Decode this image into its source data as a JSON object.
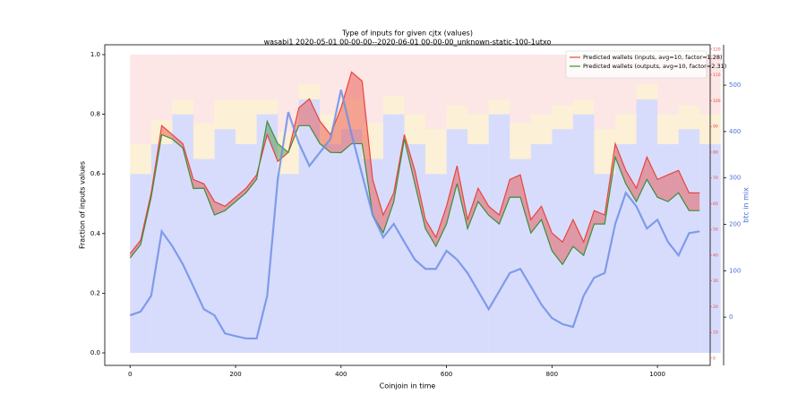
{
  "chart_data": {
    "type": "line",
    "title": "Type of inputs for given cjtx (values)",
    "subtitle": "wasabi1 2020-05-01 00-00-00--2020-06-01 00-00-00_unknown-static-100-1utxo",
    "xlabel": "Coinjoin in time",
    "ylabel": "Fraction of inputs values",
    "y2label": "btc in mix",
    "legend": "upper right",
    "x": [
      0,
      20,
      40,
      60,
      80,
      100,
      120,
      140,
      160,
      180,
      200,
      220,
      240,
      260,
      280,
      300,
      320,
      340,
      360,
      380,
      400,
      420,
      440,
      460,
      480,
      500,
      520,
      540,
      560,
      580,
      600,
      620,
      640,
      660,
      680,
      700,
      720,
      740,
      760,
      780,
      800,
      820,
      840,
      860,
      880,
      900,
      920,
      940,
      960,
      980,
      1000,
      1020,
      1040,
      1060,
      1080
    ],
    "series": [
      {
        "name": "Predicted wallets (inputs, avg=10, factor=1.28)",
        "color": "#e8453c",
        "axis": "y3",
        "values": [
          40.6,
          45.8,
          64.2,
          90.3,
          86.8,
          83.3,
          69.4,
          67.7,
          60.8,
          59.0,
          62.5,
          66.0,
          71.2,
          86.8,
          76.4,
          79.9,
          97.2,
          100.7,
          92.0,
          86.8,
          97.2,
          111.1,
          107.6,
          69.4,
          55.6,
          64.2,
          86.8,
          72.9,
          53.8,
          46.9,
          59.0,
          74.7,
          53.8,
          66.0,
          59.0,
          55.6,
          69.4,
          71.2,
          53.8,
          59.0,
          48.6,
          45.1,
          53.8,
          45.1,
          57.3,
          55.6,
          83.3,
          72.9,
          66.0,
          78.1,
          69.4,
          71.2,
          72.9,
          64.2,
          64.2
        ]
      },
      {
        "name": "Predicted wallets (outputs, avg=10, factor=2.31)",
        "color": "#3a8f3a",
        "axis": "y3",
        "values": [
          38.9,
          44.1,
          62.5,
          86.8,
          85.1,
          81.6,
          65.9,
          66.0,
          55.6,
          57.3,
          60.8,
          64.3,
          69.5,
          92.0,
          83.3,
          79.9,
          90.3,
          90.3,
          83.3,
          79.9,
          79.8,
          83.3,
          83.3,
          55.5,
          48.7,
          60.7,
          85.1,
          67.7,
          50.3,
          43.4,
          52.1,
          67.8,
          50.3,
          60.8,
          55.5,
          52.1,
          62.5,
          62.5,
          48.6,
          53.8,
          41.7,
          36.4,
          43.4,
          39.9,
          52.1,
          52.1,
          78.1,
          67.7,
          60.8,
          69.4,
          62.5,
          60.8,
          64.2,
          57.3,
          57.3
        ]
      },
      {
        "color": "#6f8fe6",
        "axis": "y2",
        "values": [
          4,
          12,
          46,
          185,
          153,
          114,
          66,
          17,
          4,
          -35,
          -41,
          -46,
          -46,
          46,
          297,
          442,
          375,
          326,
          355,
          384,
          490,
          394,
          307,
          220,
          172,
          201,
          162,
          124,
          104,
          104,
          143,
          124,
          95,
          56,
          17,
          56,
          95,
          104,
          66,
          27,
          -2,
          -15,
          -21,
          46,
          85,
          95,
          201,
          268,
          239,
          191,
          210,
          162,
          133,
          181,
          185
        ]
      }
    ],
    "bars": {
      "x": [
        0,
        40,
        80,
        120,
        160,
        200,
        240,
        280,
        320,
        360,
        400,
        440,
        480,
        520,
        560,
        600,
        640,
        680,
        720,
        760,
        800,
        840,
        880,
        920,
        960,
        1000,
        1040,
        1080
      ],
      "series": [
        {
          "color": "#8e9cf5",
          "values": [
            0.6,
            0.7,
            0.8,
            0.65,
            0.75,
            0.7,
            0.8,
            0.6,
            0.85,
            0.7,
            0.75,
            0.65,
            0.8,
            0.7,
            0.6,
            0.75,
            0.7,
            0.8,
            0.65,
            0.7,
            0.75,
            0.8,
            0.6,
            0.7,
            0.85,
            0.7,
            0.75,
            0.7
          ]
        },
        {
          "color": "#f7d58a",
          "values": [
            0.1,
            0.08,
            0.05,
            0.12,
            0.1,
            0.15,
            0.05,
            0.14,
            0.05,
            0.1,
            0.1,
            0.12,
            0.06,
            0.1,
            0.15,
            0.08,
            0.1,
            0.05,
            0.12,
            0.1,
            0.08,
            0.05,
            0.15,
            0.1,
            0.05,
            0.1,
            0.08,
            0.1
          ]
        },
        {
          "color": "#f7b8b8",
          "values": [
            0.3,
            0.22,
            0.15,
            0.23,
            0.15,
            0.15,
            0.15,
            0.26,
            0.1,
            0.2,
            0.15,
            0.23,
            0.14,
            0.2,
            0.25,
            0.17,
            0.2,
            0.15,
            0.23,
            0.2,
            0.17,
            0.15,
            0.25,
            0.2,
            0.1,
            0.2,
            0.17,
            0.2
          ]
        }
      ]
    },
    "xlim": [
      -48,
      1100
    ],
    "xticks": [
      0,
      200,
      400,
      600,
      800,
      1000
    ],
    "ylim": [
      -0.042,
      1.033
    ],
    "yticks": [
      {
        "value": 0,
        "label": "0.0"
      },
      0.2,
      0.4,
      0.6,
      0.8,
      {
        "value": 1,
        "label": "1.0"
      }
    ],
    "y2lim": [
      -104,
      587
    ],
    "y2ticks": [
      0,
      100,
      200,
      300,
      400,
      500
    ],
    "y2color": "#4a6fdc",
    "y3lim": [
      -2.8,
      121.7
    ],
    "y3ticks": [
      0,
      10,
      20,
      30,
      40,
      50,
      60,
      70,
      80,
      90,
      100,
      110,
      120
    ],
    "y3color": "#e8453c"
  }
}
